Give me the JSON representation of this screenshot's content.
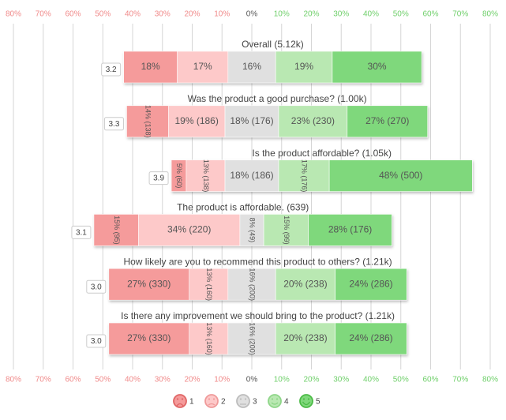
{
  "chart_data": {
    "type": "diverging_bar",
    "categories": [
      "Overall (5.12k)",
      "Was the product a good purchase? (1.00k)",
      "Is the product affordable? (1.05k)",
      "The product is affordable. (639)",
      "How likely are you to recommend this product to others? (1.21k)",
      "Is there any improvement we should bring to the product? (1.21k)"
    ],
    "means": [
      {
        "value": 3.2,
        "label": "3.2"
      },
      {
        "value": 3.3,
        "label": "3.3"
      },
      {
        "value": 3.9,
        "label": "3.9"
      },
      {
        "value": 3.1,
        "label": "3.1"
      },
      {
        "value": 3.0,
        "label": "3.0"
      },
      {
        "value": 3.0,
        "label": "3.0"
      }
    ],
    "series": [
      {
        "name": "1",
        "color": "#f59b9b",
        "values": [
          18,
          14,
          5,
          15,
          27,
          27
        ],
        "value_labels": [
          "18%",
          "14% (138)",
          "5% (60)",
          "15% (95)",
          "27% (330)",
          "27% (330)"
        ]
      },
      {
        "name": "2",
        "color": "#fdc9c9",
        "values": [
          17,
          19,
          13,
          34,
          13,
          13
        ],
        "value_labels": [
          "17%",
          "19% (186)",
          "13% (138)",
          "34% (220)",
          "13% (160)",
          "13% (160)"
        ]
      },
      {
        "name": "3",
        "color": "#e0e0e0",
        "values": [
          16,
          18,
          18,
          8,
          16,
          16
        ],
        "value_labels": [
          "16%",
          "18% (176)",
          "18% (186)",
          "8% (49)",
          "16% (200)",
          "16% (200)"
        ]
      },
      {
        "name": "4",
        "color": "#b9e8b2",
        "values": [
          19,
          23,
          17,
          15,
          20,
          20
        ],
        "value_labels": [
          "19%",
          "23% (230)",
          "17% (176)",
          "15% (99)",
          "20% (238)",
          "20% (238)"
        ]
      },
      {
        "name": "5",
        "color": "#7fd87b",
        "values": [
          30,
          27,
          48,
          28,
          24,
          24
        ],
        "value_labels": [
          "30%",
          "27% (270)",
          "48% (500)",
          "28% (176)",
          "24% (286)",
          "24% (286)"
        ]
      }
    ],
    "xlim": [
      -80,
      80
    ],
    "xticks": [
      {
        "value": -80,
        "label": "80%"
      },
      {
        "value": -70,
        "label": "70%"
      },
      {
        "value": -60,
        "label": "60%"
      },
      {
        "value": -50,
        "label": "50%"
      },
      {
        "value": -40,
        "label": "40%"
      },
      {
        "value": -30,
        "label": "30%"
      },
      {
        "value": -20,
        "label": "20%"
      },
      {
        "value": -10,
        "label": "10%"
      },
      {
        "value": 0,
        "label": "0%"
      },
      {
        "value": 10,
        "label": "10%"
      },
      {
        "value": 20,
        "label": "20%"
      },
      {
        "value": 30,
        "label": "30%"
      },
      {
        "value": 40,
        "label": "40%"
      },
      {
        "value": 50,
        "label": "50%"
      },
      {
        "value": 60,
        "label": "60%"
      },
      {
        "value": 70,
        "label": "70%"
      },
      {
        "value": 80,
        "label": "80%"
      }
    ],
    "grid": true
  }
}
